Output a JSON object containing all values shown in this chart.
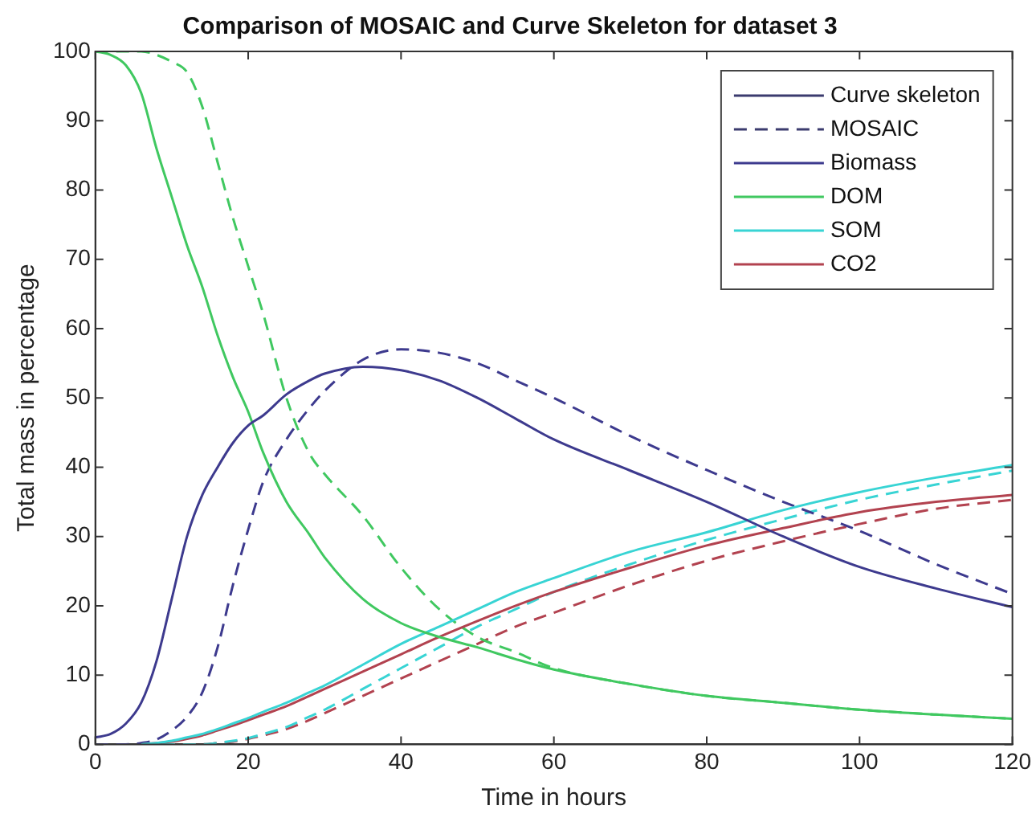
{
  "chart_data": {
    "type": "line",
    "title": "Comparison of MOSAIC and Curve Skeleton for dataset 3",
    "xlabel": "Time in hours",
    "ylabel": "Total mass in percentage",
    "x": [
      0,
      2,
      4,
      6,
      8,
      10,
      12,
      14,
      16,
      18,
      20,
      22,
      25,
      28,
      30,
      35,
      40,
      45,
      50,
      55,
      60,
      70,
      80,
      90,
      100,
      110,
      120
    ],
    "xlim": [
      0,
      120
    ],
    "xticks": [
      0,
      20,
      40,
      60,
      80,
      100,
      120
    ],
    "ylim": [
      0,
      100
    ],
    "yticks": [
      0,
      10,
      20,
      30,
      40,
      50,
      60,
      70,
      80,
      90,
      100
    ],
    "grid": false,
    "legend": "top right",
    "marker": "none",
    "series": [
      {
        "name": "Curve skeleton",
        "color": "#3b3b6e",
        "line_style": "solid",
        "values": [
          null,
          null,
          null,
          null,
          null,
          null,
          null,
          null,
          null,
          null,
          null,
          null,
          null,
          null,
          null,
          null,
          null,
          null,
          null,
          null,
          null,
          null,
          null,
          null,
          null,
          null,
          null
        ]
      },
      {
        "name": "MOSAIC",
        "color": "#3b3b6e",
        "line_style": "dashed",
        "values": [
          null,
          null,
          null,
          null,
          null,
          null,
          null,
          null,
          null,
          null,
          null,
          null,
          null,
          null,
          null,
          null,
          null,
          null,
          null,
          null,
          null,
          null,
          null,
          null,
          null,
          null,
          null
        ]
      },
      {
        "name": "Biomass",
        "color": "#3d3a8e",
        "line_style": "solid",
        "values": [
          1,
          1.5,
          3,
          6,
          12,
          21,
          30,
          36,
          40,
          43.5,
          46,
          47.5,
          50.5,
          52.5,
          53.5,
          54.5,
          54,
          52.5,
          50,
          47,
          44,
          39.5,
          35,
          30,
          25.6,
          22.5,
          19.8
        ]
      },
      {
        "name": "DOM",
        "color": "#40c860",
        "line_style": "solid",
        "values": [
          100,
          99.5,
          98,
          94,
          86,
          79,
          72,
          66,
          59,
          53,
          48,
          42,
          35,
          30.3,
          27,
          21,
          17.5,
          15.5,
          14,
          12.3,
          10.8,
          8.7,
          7,
          6,
          5,
          4.3,
          3.7
        ]
      },
      {
        "name": "SOM",
        "color": "#38d4d4",
        "line_style": "solid",
        "values": [
          null,
          null,
          null,
          0,
          0.2,
          0.5,
          1,
          1.5,
          2.2,
          3,
          3.8,
          4.7,
          6,
          7.5,
          8.5,
          11.5,
          14.5,
          17,
          19.5,
          22,
          24,
          27.8,
          30.6,
          33.8,
          36.4,
          38.5,
          40.3
        ]
      },
      {
        "name": "CO2",
        "color": "#b2424f",
        "line_style": "solid",
        "values": [
          null,
          null,
          null,
          0,
          0.2,
          0.4,
          0.8,
          1.3,
          2,
          2.7,
          3.5,
          4.3,
          5.5,
          7,
          8,
          10.5,
          13,
          15.5,
          17.8,
          20,
          22,
          25.5,
          28.7,
          31.2,
          33.5,
          35,
          36
        ]
      },
      {
        "color": "#3d3a8e",
        "line_style": "dashed",
        "values": [
          0,
          0,
          0,
          0.2,
          0.7,
          2,
          4,
          7.5,
          14,
          23,
          31,
          38,
          44,
          48.5,
          51,
          55.5,
          57,
          56.5,
          55,
          52.5,
          50,
          44.5,
          39.6,
          35,
          30.8,
          26,
          21.7
        ]
      },
      {
        "color": "#40c860",
        "line_style": "dashed",
        "values": [
          100,
          100,
          100,
          100,
          99.5,
          98.5,
          97,
          92,
          84,
          76,
          69,
          62,
          50,
          42,
          39,
          33,
          25.5,
          19.5,
          15.5,
          13.3,
          11,
          8.7,
          7,
          6,
          5,
          4.3,
          3.7
        ]
      },
      {
        "color": "#38d4d4",
        "line_style": "dashed",
        "values": [
          null,
          null,
          null,
          0,
          0,
          0,
          0,
          0,
          0.2,
          0.5,
          0.9,
          1.5,
          2.5,
          4,
          5,
          8,
          11,
          14,
          17,
          19.5,
          22,
          26,
          29.5,
          32.5,
          35.3,
          37.5,
          39.5
        ]
      },
      {
        "color": "#b2424f",
        "line_style": "dashed",
        "values": [
          null,
          null,
          null,
          0,
          0,
          0,
          0,
          0,
          0.2,
          0.4,
          0.8,
          1.3,
          2.2,
          3.5,
          4.5,
          7,
          9.5,
          12,
          14.5,
          17,
          19,
          23,
          26.5,
          29.3,
          31.8,
          34,
          35.3
        ]
      }
    ]
  }
}
